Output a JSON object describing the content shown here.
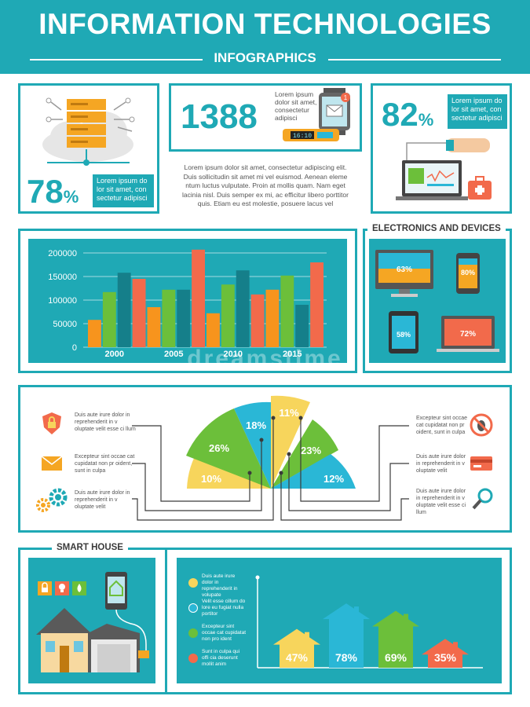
{
  "header": {
    "title": "INFORMATION TECHNOLOGIES",
    "subtitle": "INFOGRAPHICS"
  },
  "panel_cloud": {
    "percent": "78",
    "unit": "%",
    "text": "Lorem ipsum do lor sit amet, con sectetur adipisci"
  },
  "panel_watch": {
    "number": "1388",
    "text": "Lorem ipsum dolor sit amet, consectetur adipisci",
    "band_time": "16:10",
    "badge": "1"
  },
  "panel_laptop": {
    "percent": "82",
    "unit": "%",
    "text": "Lorem ipsum do lor sit amet, con sectetur adipisci"
  },
  "center_paragraph": "Lorem ipsum dolor sit amet, consectetur adipiscing elit. Duis sollicitudin sit amet mi vel euismod. Aenean eleme ntum luctus vulputate. Proin at mollis quam. Nam eget lacinia nisl. Duis semper ex mi, ac efficitur libero porttitor quis. Etiam eu est molestie, posuere lacus vel",
  "colors": {
    "teal": "#1fa9b5",
    "orange": "#f7941d",
    "green": "#6cbf3a",
    "darkteal": "#157f8a",
    "red": "#f26a4b",
    "yellow": "#f7d55c",
    "cyan": "#2ab7d6"
  },
  "chart_data": {
    "type": "bar",
    "categories": [
      "2000",
      "2005",
      "2010",
      "2015"
    ],
    "series": [
      {
        "values": [
          58000,
          85000,
          72000,
          122000
        ]
      },
      {
        "values": [
          117000,
          122000,
          133000,
          152000
        ]
      },
      {
        "values": [
          158000,
          122000,
          163000,
          90000
        ]
      },
      {
        "values": [
          145000,
          207000,
          112000,
          180000
        ]
      }
    ],
    "yticks": [
      "0",
      "50000",
      "100000",
      "150000",
      "200000"
    ],
    "ylim": [
      0,
      200000
    ],
    "grid": true,
    "xlabel": "",
    "ylabel": "",
    "title": ""
  },
  "electronics": {
    "title": "ELECTRONICS AND DEVICES",
    "devices": [
      {
        "name": "monitor",
        "percent": "63%"
      },
      {
        "name": "phone",
        "percent": "80%"
      },
      {
        "name": "tablet",
        "percent": "58%"
      },
      {
        "name": "laptop",
        "percent": "72%"
      }
    ]
  },
  "fan_chart": {
    "slices": [
      "10%",
      "26%",
      "18%",
      "11%",
      "23%",
      "12%"
    ],
    "left_items": [
      {
        "icon": "shield-lock-icon",
        "text": "Duis aute irure dolor in reprehenderit in v oluptate velit esse ci llum"
      },
      {
        "icon": "envelope-icon",
        "text": "Excepteur sint occae cat cupidatat non pr oident, sunt in culpa"
      },
      {
        "icon": "gears-icon",
        "text": "Duis aute irure dolor in reprehenderit in v oluptate velit"
      }
    ],
    "right_items": [
      {
        "icon": "no-bug-icon",
        "text": "Excepteur sint occae cat cupidatat non pr oident, sunt in culpa"
      },
      {
        "icon": "credit-card-icon",
        "text": "Duis aute irure dolor in reprehenderit in v oluptate velit"
      },
      {
        "icon": "magnifier-icon",
        "text": "Duis aute irure dolor in reprehenderit in v oluptate velit esse ci llum"
      }
    ]
  },
  "smart_house": {
    "title": "SMART HOUSE",
    "legend": [
      {
        "color": "#f7d55c",
        "text": "Duis aute irure dolor in reprehenderit in volupate"
      },
      {
        "color": "#2ab7d6",
        "text": "Velit esse cillum do lore eu fugiat nulla portitor"
      },
      {
        "color": "#6cbf3a",
        "text": "Excepteur sint occae cat cupidatat non pro ident"
      },
      {
        "color": "#f26a4b",
        "text": "Sunt in culpa qui offi cia deserunt mollit anim"
      }
    ],
    "houses": [
      {
        "percent": "47%",
        "value": 47,
        "color": "#f7d55c"
      },
      {
        "percent": "78%",
        "value": 78,
        "color": "#2ab7d6"
      },
      {
        "percent": "69%",
        "value": 69,
        "color": "#6cbf3a"
      },
      {
        "percent": "35%",
        "value": 35,
        "color": "#f26a4b"
      }
    ]
  },
  "watermark": "dreamstime"
}
